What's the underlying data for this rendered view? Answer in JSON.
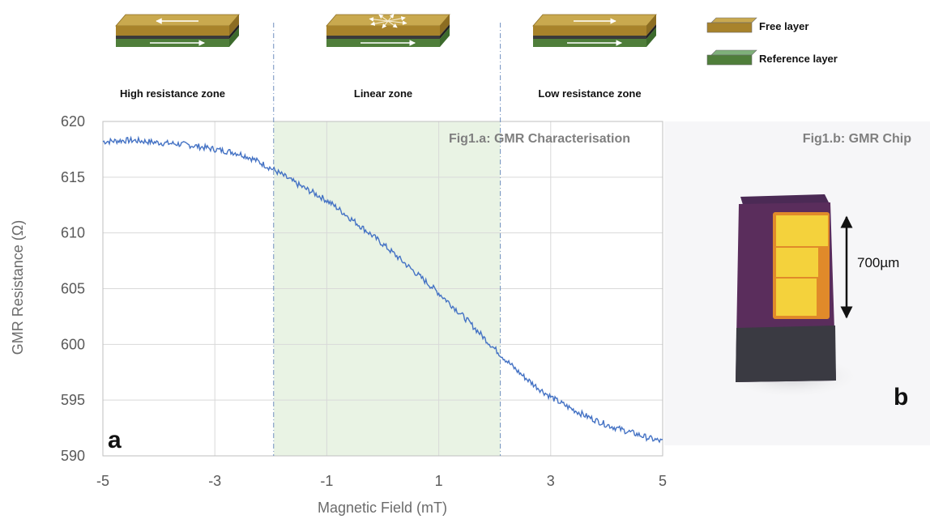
{
  "zones": [
    {
      "label": "High resistance zone",
      "free_arrow": "left",
      "ref_arrow": "right",
      "style": "single"
    },
    {
      "label": "Linear zone",
      "free_arrow": "radial",
      "ref_arrow": "right",
      "style": "radial"
    },
    {
      "label": "Low resistance zone",
      "free_arrow": "right",
      "ref_arrow": "right",
      "style": "single"
    }
  ],
  "legend": [
    {
      "label": "Free layer",
      "color": "#c9a94f"
    },
    {
      "label": "Reference layer",
      "color": "#7fb07a"
    }
  ],
  "colors": {
    "free_top": "#c9a94f",
    "free_side": "#a8832b",
    "spacer": "#3a3a3a",
    "ref_top": "#8ab86f",
    "ref_side": "#4f7e3a",
    "curve": "#4472c4",
    "linear_zone_fill": "#e9f3e4",
    "zone_divider": "#6f8fbf",
    "grid": "#d9d9d9",
    "title_text": "#7f7f7f"
  },
  "chart_data": {
    "type": "line",
    "title": "Fig1.a: GMR Characterisation",
    "xlabel": "Magnetic Field (mT)",
    "ylabel": "GMR Resistance (Ω)",
    "xlim": [
      -5,
      5
    ],
    "ylim": [
      590,
      620
    ],
    "x_ticks": [
      -5,
      -3,
      -1,
      1,
      3,
      5
    ],
    "y_ticks": [
      590,
      595,
      600,
      605,
      610,
      615,
      620
    ],
    "grid": true,
    "linear_zone": [
      -1.95,
      2.1
    ],
    "panel_letter": "a",
    "series": [
      {
        "values": [
          {
            "x": -5.0,
            "y": 618.2
          },
          {
            "x": -4.5,
            "y": 618.3
          },
          {
            "x": -4.0,
            "y": 618.1
          },
          {
            "x": -3.5,
            "y": 617.9
          },
          {
            "x": -3.0,
            "y": 617.5
          },
          {
            "x": -2.5,
            "y": 617.0
          },
          {
            "x": -2.0,
            "y": 615.8
          },
          {
            "x": -1.5,
            "y": 614.3
          },
          {
            "x": -1.0,
            "y": 612.9
          },
          {
            "x": -0.5,
            "y": 611.0
          },
          {
            "x": 0.0,
            "y": 609.0
          },
          {
            "x": 0.5,
            "y": 606.8
          },
          {
            "x": 1.0,
            "y": 604.6
          },
          {
            "x": 1.5,
            "y": 602.2
          },
          {
            "x": 2.0,
            "y": 599.6
          },
          {
            "x": 2.5,
            "y": 597.2
          },
          {
            "x": 3.0,
            "y": 595.3
          },
          {
            "x": 3.5,
            "y": 593.9
          },
          {
            "x": 4.0,
            "y": 592.8
          },
          {
            "x": 4.5,
            "y": 592.0
          },
          {
            "x": 5.0,
            "y": 591.3
          }
        ]
      }
    ]
  },
  "photo": {
    "title": "Fig1.b: GMR Chip",
    "dimension_label": "700µm",
    "panel_letter": "b",
    "chip_body": "#5a2d5c",
    "chip_dark": "#3a3a42",
    "pad_color": "#f4d23c"
  }
}
